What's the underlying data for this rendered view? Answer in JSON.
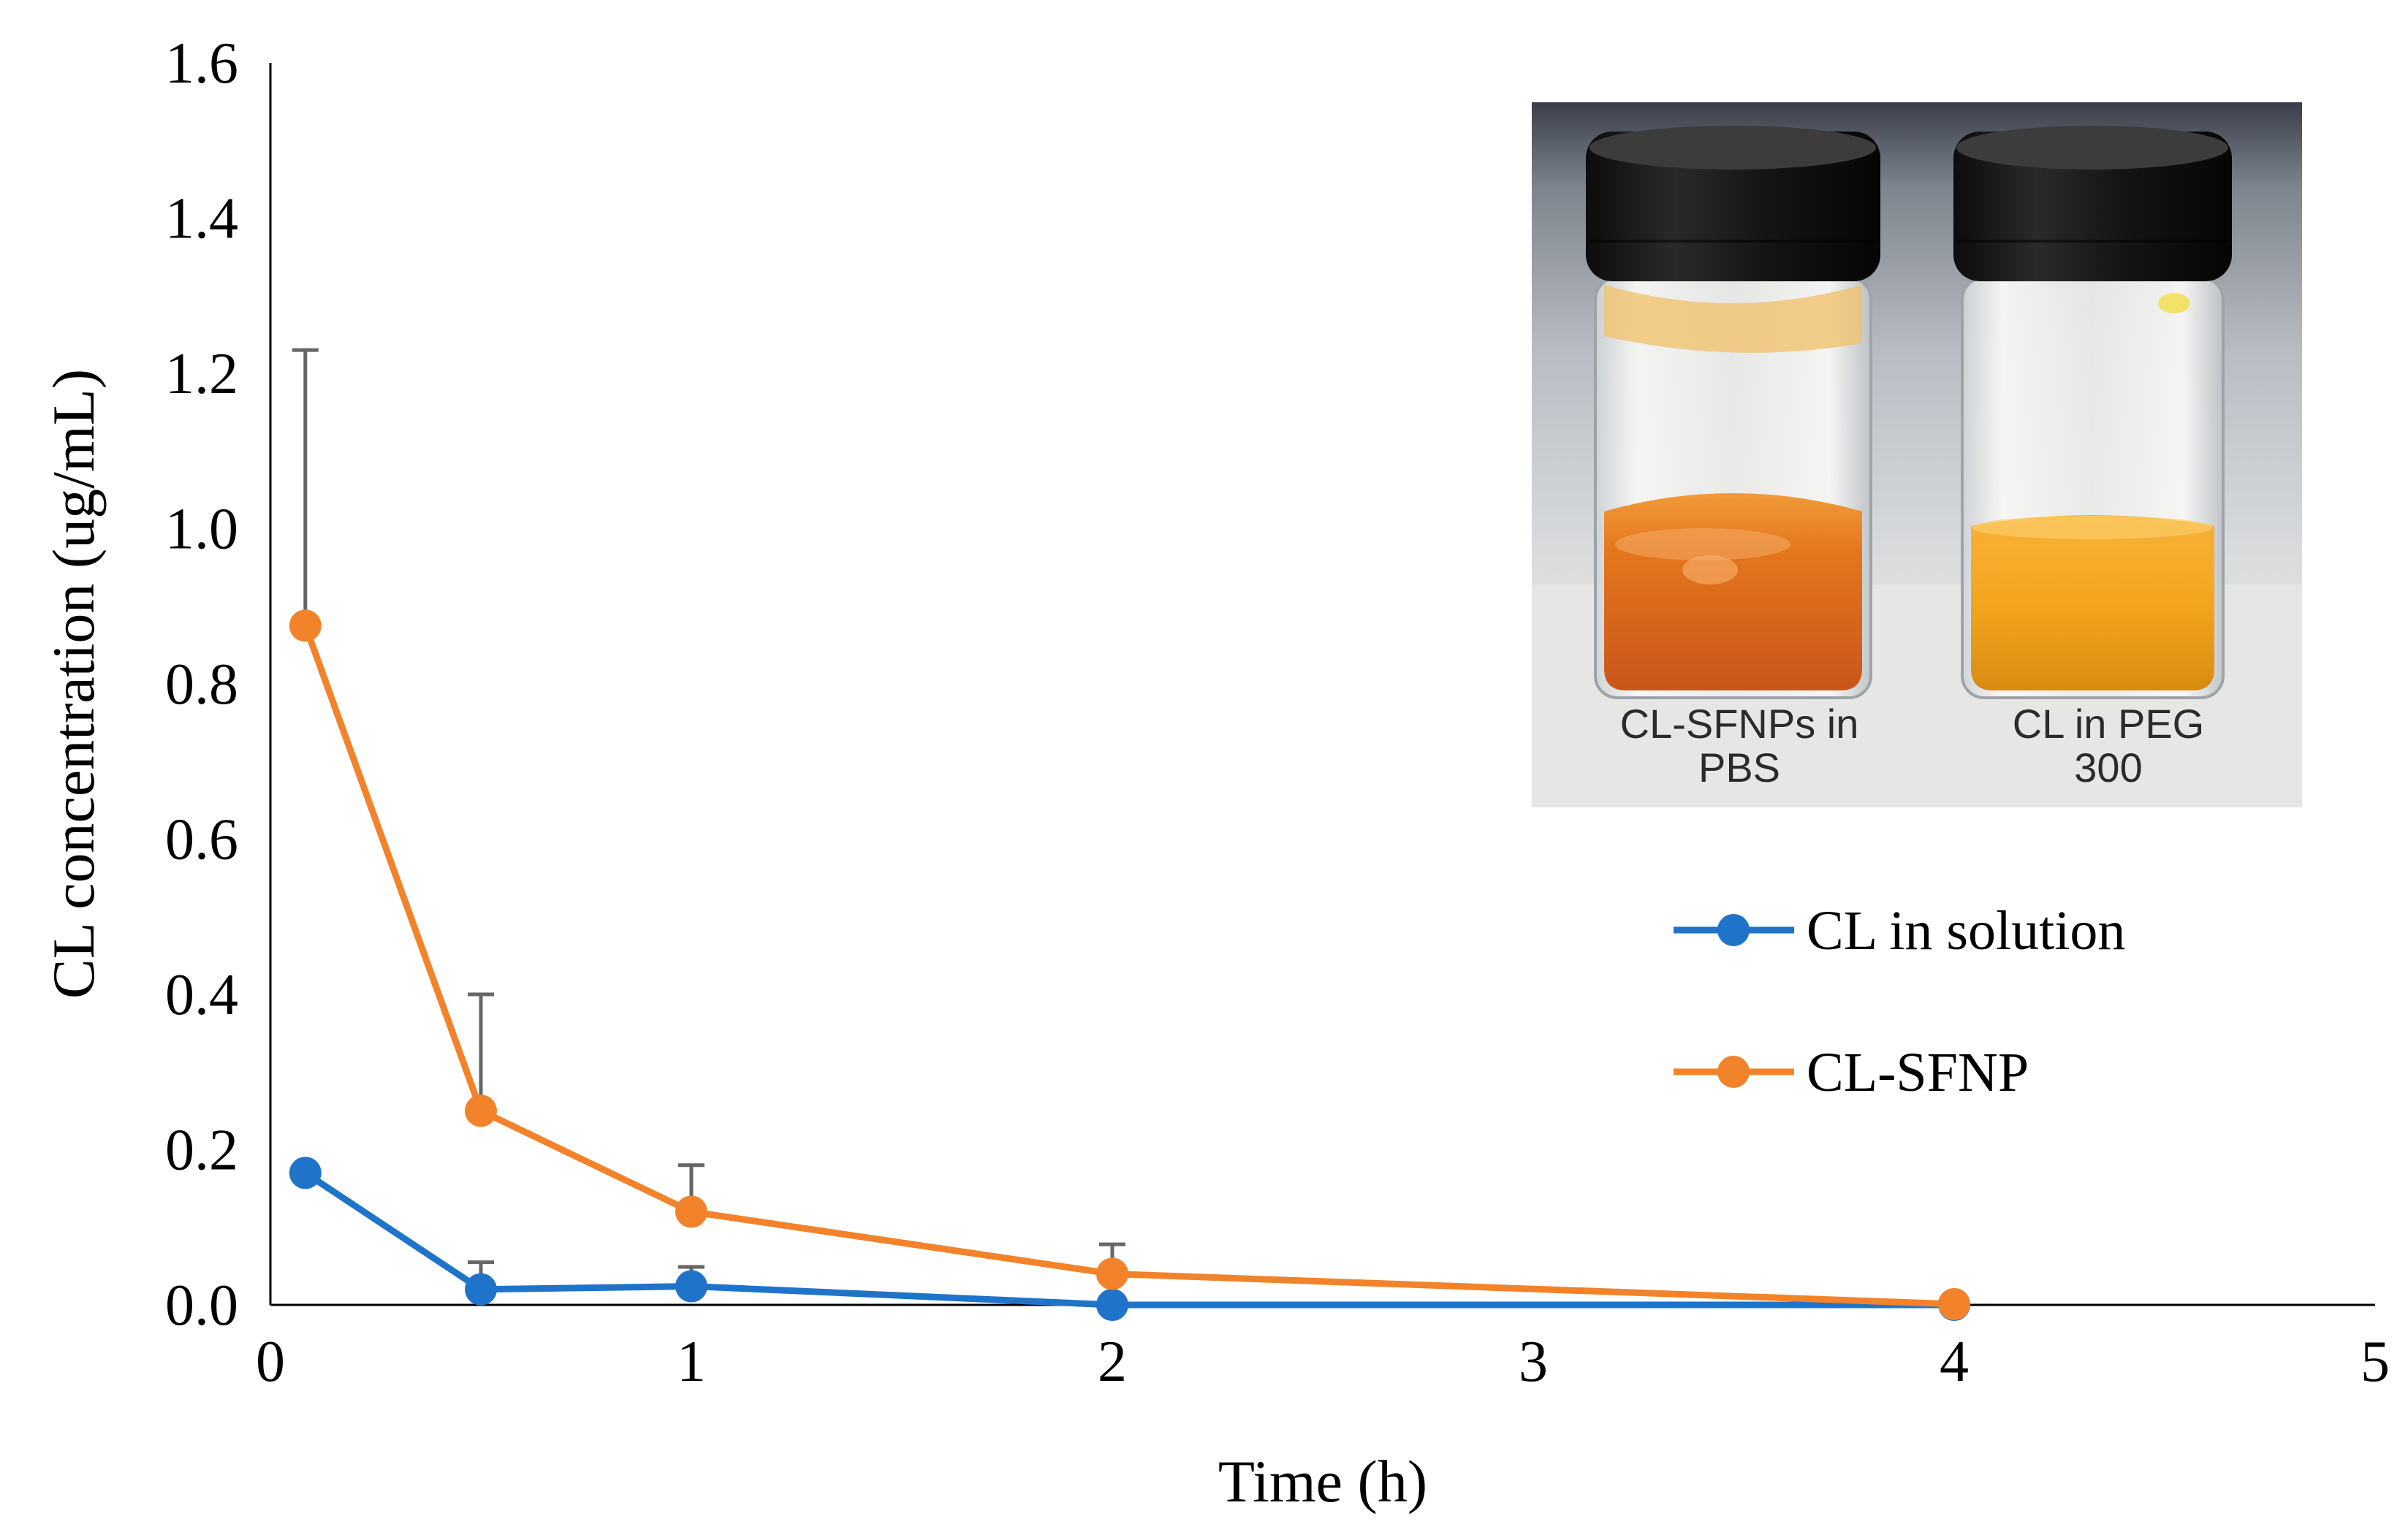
{
  "chart_data": {
    "type": "line",
    "title": "",
    "xlabel": "Time (h)",
    "ylabel": "CL concentration (ug/mL)",
    "xlim": [
      0,
      5
    ],
    "ylim": [
      0,
      1.6
    ],
    "x_ticks": [
      "0",
      "1",
      "2",
      "3",
      "4",
      "5"
    ],
    "y_ticks": [
      "0.0",
      "0.2",
      "0.4",
      "0.6",
      "0.8",
      "1.0",
      "1.2",
      "1.4",
      "1.6"
    ],
    "grid": false,
    "legend_position": "right",
    "x_positions": [
      0.083,
      0.5,
      1.0,
      2.0,
      4.0
    ],
    "x_category_labels": [
      "0.083",
      "0.5",
      "1",
      "2",
      "4"
    ],
    "series": [
      {
        "name": "CL in solution",
        "color": "#1f74c9",
        "values": [
          0.17,
          0.02,
          0.024,
          0.0,
          0.0
        ],
        "error_plus": [
          0.0,
          0.035,
          0.025,
          0.0,
          0.0
        ]
      },
      {
        "name": "CL-SFNP",
        "color": "#f2832b",
        "values": [
          0.875,
          0.25,
          0.12,
          0.04,
          0.001
        ],
        "error_plus": [
          0.355,
          0.15,
          0.06,
          0.038,
          0.0
        ]
      }
    ],
    "error_bar_color": "#666666",
    "inset_photo": {
      "caption_left": [
        "CL-SFNPs in",
        "PBS"
      ],
      "caption_right": [
        "CL in PEG",
        "300"
      ]
    }
  }
}
